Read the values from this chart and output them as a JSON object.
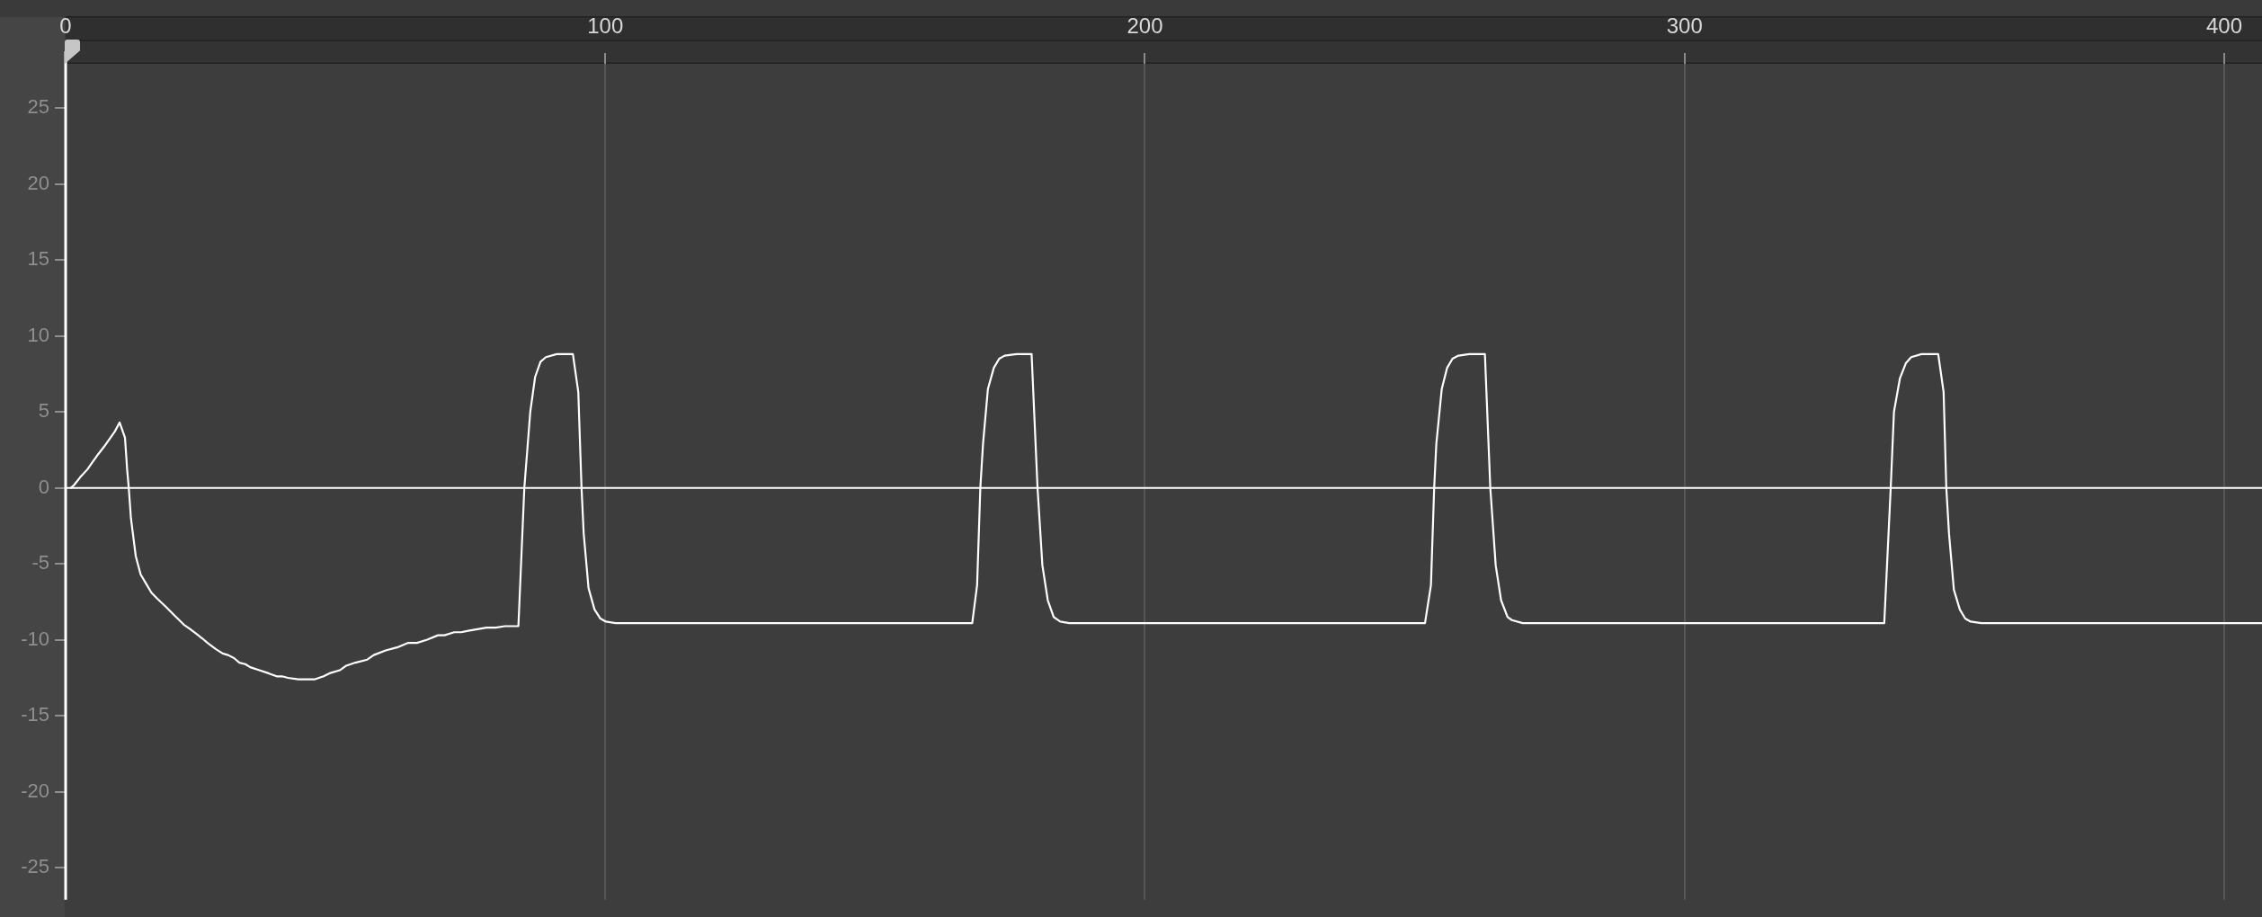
{
  "chart_data": {
    "type": "line",
    "color": "#ffffff",
    "marker": "none",
    "line_style": "solid",
    "grid": "x",
    "xlim": [
      0,
      407
    ],
    "xticks": [
      0,
      100,
      200,
      300,
      400
    ],
    "ylim": [
      -27.1,
      27.9
    ],
    "yticks": [
      -25,
      -20,
      -15,
      -10,
      -5,
      0,
      5,
      10,
      15,
      20,
      25
    ],
    "ref_lines": [
      {
        "axis": "y",
        "value": 0,
        "color": "#ffffff"
      }
    ],
    "x": [
      1.0,
      1.6,
      2.7,
      4.0,
      5.0,
      6.0,
      7.1,
      8.1,
      9.1,
      10.0,
      11.0,
      11.4,
      11.7,
      12.1,
      13.0,
      13.9,
      14.9,
      15.9,
      17.0,
      18.5,
      20.2,
      21.9,
      23.1,
      24.2,
      25.3,
      26.3,
      27.8,
      29.1,
      30.1,
      31.2,
      32.2,
      33.3,
      34.2,
      35.9,
      37.6,
      39.1,
      40.1,
      41.2,
      43.1,
      46.1,
      47.8,
      48.9,
      50.8,
      52.0,
      53.7,
      55.9,
      57.1,
      59.3,
      61.4,
      63.5,
      65.1,
      66.9,
      69.0,
      70.2,
      72.0,
      73.3,
      74.6,
      76.3,
      78.0,
      79.7,
      81.4,
      83.9,
      85.0,
      86.1,
      87.0,
      88.0,
      89.0,
      91.0,
      94.0,
      95.0,
      95.6,
      96.0,
      96.9,
      98.0,
      99.1,
      100.1,
      101.9,
      168.0,
      168.9,
      169.5,
      170.0,
      170.9,
      172.0,
      173.0,
      174.0,
      176.2,
      179.0,
      180.1,
      181.0,
      182.0,
      183.1,
      184.3,
      186.0,
      251.9,
      253.0,
      253.6,
      254.0,
      255.0,
      256.0,
      257.0,
      258.1,
      260.1,
      263.0,
      264.0,
      265.0,
      266.0,
      267.2,
      268.0,
      270.0,
      337.0,
      338.2,
      338.8,
      339.9,
      341.0,
      342.0,
      343.9,
      347.0,
      348.0,
      348.5,
      349.0,
      349.9,
      351.0,
      352.0,
      353.0,
      355.0,
      407.0
    ],
    "values": [
      0,
      0.2,
      0.7,
      1.2,
      1.7,
      2.2,
      2.7,
      3.2,
      3.7,
      4.3,
      3.3,
      1.2,
      0,
      -2.0,
      -4.5,
      -5.7,
      -6.3,
      -6.9,
      -7.3,
      -7.8,
      -8.4,
      -9.0,
      -9.3,
      -9.6,
      -9.9,
      -10.2,
      -10.6,
      -10.9,
      -11.0,
      -11.2,
      -11.5,
      -11.6,
      -11.8,
      -12.0,
      -12.2,
      -12.4,
      -12.4,
      -12.5,
      -12.6,
      -12.6,
      -12.4,
      -12.2,
      -12.0,
      -11.7,
      -11.5,
      -11.3,
      -11.0,
      -10.7,
      -10.5,
      -10.2,
      -10.2,
      -10.0,
      -9.7,
      -9.7,
      -9.5,
      -9.5,
      -9.4,
      -9.3,
      -9.2,
      -9.2,
      -9.1,
      -9.1,
      0,
      5.0,
      7.3,
      8.3,
      8.6,
      8.8,
      8.8,
      6.3,
      0,
      -3.0,
      -6.6,
      -8.0,
      -8.6,
      -8.8,
      -8.9,
      -8.9,
      -6.4,
      0,
      2.9,
      6.5,
      7.9,
      8.5,
      8.7,
      8.8,
      8.8,
      0,
      -5.1,
      -7.4,
      -8.5,
      -8.8,
      -8.9,
      -8.9,
      -6.4,
      0,
      2.9,
      6.5,
      7.9,
      8.5,
      8.7,
      8.8,
      8.8,
      0,
      -5.1,
      -7.4,
      -8.5,
      -8.7,
      -8.9,
      -8.9,
      0,
      5.0,
      7.2,
      8.2,
      8.6,
      8.8,
      8.8,
      6.3,
      0,
      -3.0,
      -6.7,
      -8.0,
      -8.6,
      -8.8,
      -8.9,
      -8.9
    ]
  }
}
